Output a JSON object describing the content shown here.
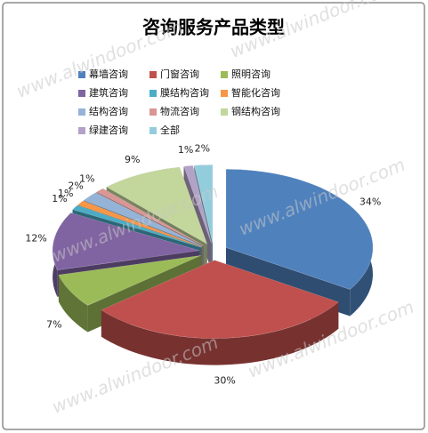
{
  "chart_data": {
    "type": "pie3d",
    "title": "咨询服务产品类型",
    "categories": [
      "幕墙咨询",
      "门窗咨询",
      "照明咨询",
      "建筑咨询",
      "膜结构咨询",
      "智能化咨询",
      "结构咨询",
      "物流咨询",
      "钢结构咨询",
      "绿建咨询",
      "全部"
    ],
    "values": [
      34,
      30,
      7,
      12,
      1,
      1,
      2,
      1,
      9,
      1,
      2
    ],
    "value_labels": [
      "34%",
      "30%",
      "7%",
      "12%",
      "1%",
      "1%",
      "2%",
      "1%",
      "9%",
      "1%",
      "2%"
    ],
    "colors": [
      "#4f81bd",
      "#c0504d",
      "#9bbb59",
      "#8064a2",
      "#4bacc6",
      "#f79646",
      "#95b3d7",
      "#d99694",
      "#c3d69b",
      "#b3a2c7",
      "#93cddd"
    ],
    "legend": "top",
    "watermark": "www.alwindoor.com"
  }
}
